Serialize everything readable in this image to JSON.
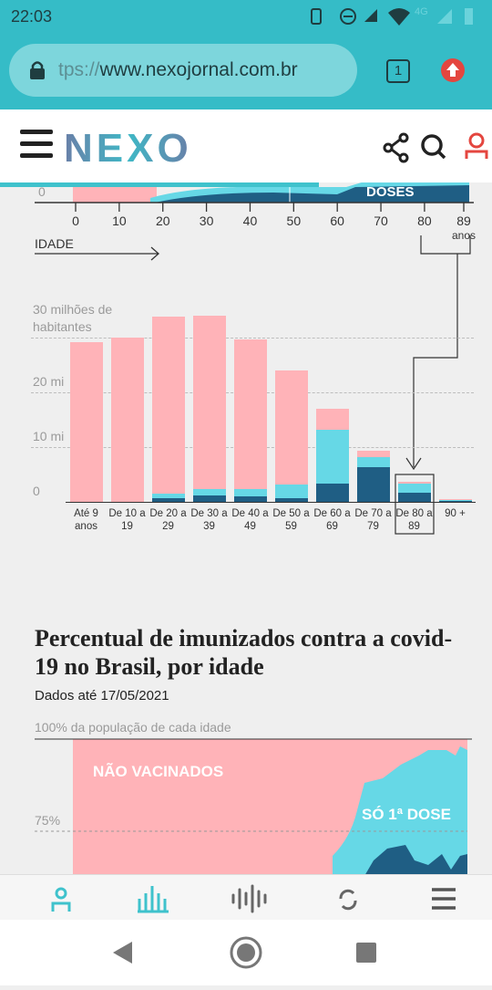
{
  "status_bar": {
    "time": "22:03",
    "network": "4G"
  },
  "browser": {
    "url_scheme": "tps://",
    "url_host": "www.nexojornal.com.br",
    "tab_count": "1"
  },
  "header": {
    "logo": "NEXO"
  },
  "top_chart": {
    "y_label": "0",
    "series_label": "DOSES",
    "x_label": "IDADE",
    "xlim": [
      0,
      89
    ],
    "xticks": [
      0,
      10,
      20,
      30,
      40,
      50,
      60,
      70,
      80,
      {
        "value": 89,
        "label": "89 anos"
      }
    ]
  },
  "chart_data": {
    "type": "bar",
    "stacked": true,
    "grid": true,
    "categories": [
      "Até 9 anos",
      "De 10 a 19",
      "De 20 a 29",
      "De 30 a 39",
      "De 40 a 49",
      "De 50 a 59",
      "De 60 a 69",
      "De 70 a 79",
      "De 80 a 89",
      "90 +"
    ],
    "series": [
      {
        "color": "#1f5e84",
        "values": [
          0,
          0,
          0.7,
          1.2,
          1.0,
          0.7,
          3.3,
          6.3,
          1.7,
          0.3
        ]
      },
      {
        "color": "#66d8e6",
        "values": [
          0,
          0,
          0.8,
          1.2,
          1.3,
          2.5,
          9.8,
          1.8,
          1.7,
          0.1
        ]
      },
      {
        "color": "#ffb3b8",
        "values": [
          29.2,
          30.0,
          32.3,
          31.6,
          27.4,
          20.8,
          3.9,
          1.2,
          0.3,
          0.1
        ]
      }
    ],
    "ylim": [
      0,
      35
    ],
    "yticks": [
      0,
      {
        "value": 10,
        "label": "10 mi"
      },
      {
        "value": 20,
        "label": "20 mi"
      },
      {
        "value": 30,
        "label": "30 milhões de habitantes"
      }
    ]
  },
  "bottom_chart": {
    "title": "Percentual de imunizados contra a covid-19 no Brasil, por idade",
    "subtitle": "Dados até 17/05/2021",
    "top_label": "100% da população de cada idade",
    "tick_75": "75%",
    "label_unvaccinated": "NÃO VACINADOS",
    "label_first_dose": "SÓ 1ª DOSE"
  }
}
